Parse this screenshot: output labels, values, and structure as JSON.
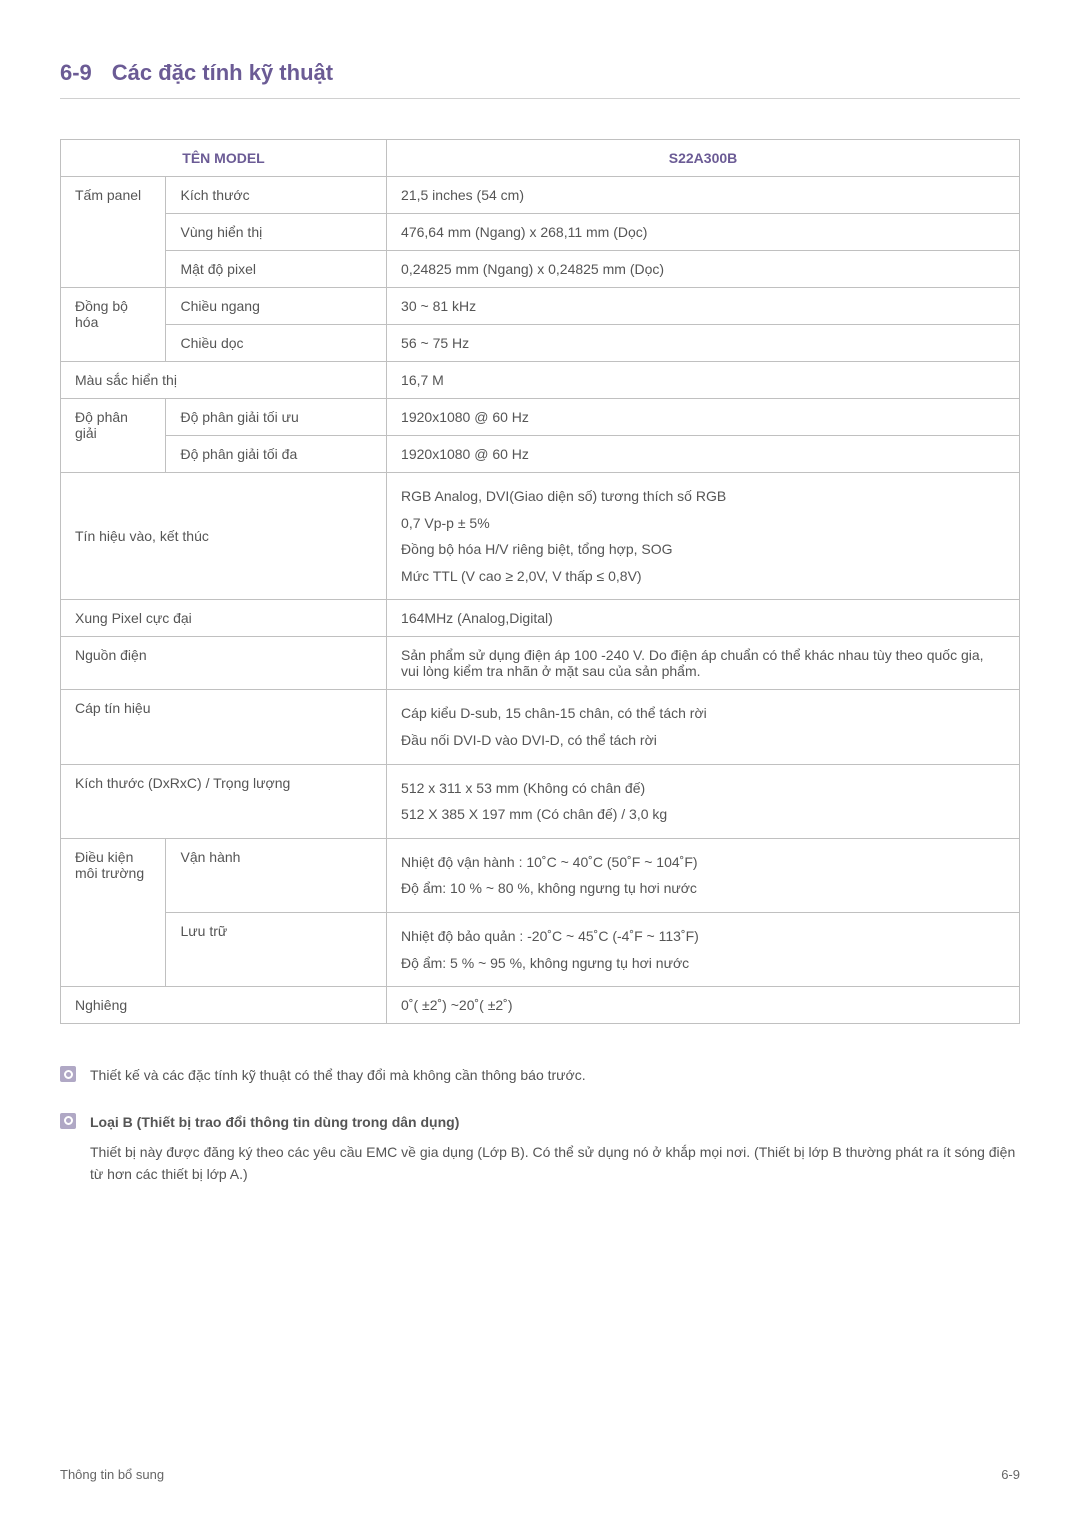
{
  "header": {
    "section_number": "6-9",
    "section_title": "Các đặc tính kỹ thuật"
  },
  "table": {
    "header_left": "TÊN MODEL",
    "header_right": "S22A300B",
    "rows": [
      {
        "group": "Tấm panel",
        "label": "Kích thước",
        "value": "21,5 inches (54 cm)"
      },
      {
        "group": null,
        "label": "Vùng hiển thị",
        "value": "476,64 mm (Ngang) x 268,11 mm (Dọc)"
      },
      {
        "group": null,
        "label": "Mật độ pixel",
        "value": "0,24825 mm (Ngang) x 0,24825 mm (Dọc)"
      },
      {
        "group": "Đồng bộ hóa",
        "label": "Chiều ngang",
        "value": "30 ~ 81 kHz"
      },
      {
        "group": null,
        "label": "Chiều dọc",
        "value": "56 ~ 75 Hz"
      },
      {
        "group_span": "Màu sắc hiển thị",
        "value": "16,7 M"
      },
      {
        "group": "Độ phân giải",
        "label": "Độ phân giải tối ưu",
        "value": "1920x1080 @ 60 Hz"
      },
      {
        "group": null,
        "label": "Độ phân giải tối đa",
        "value": "1920x1080 @ 60 Hz"
      },
      {
        "group_span": "Tín hiệu vào, kết thúc",
        "value_lines": [
          "RGB Analog, DVI(Giao diện số) tương thích số RGB",
          "0,7 Vp-p ± 5%",
          "Đồng bộ hóa H/V riêng biệt, tổng hợp, SOG",
          "Mức TTL (V cao ≥ 2,0V, V thấp ≤ 0,8V)"
        ]
      },
      {
        "group_span": "Xung Pixel cực đại",
        "value": "164MHz (Analog,Digital)"
      },
      {
        "group_span": "Nguồn điện",
        "value": "Sản phẩm sử dụng điện áp 100 -240 V. Do điện áp chuẩn có thể khác nhau tùy theo quốc gia, vui lòng kiểm tra nhãn ở mặt sau của sản phẩm."
      },
      {
        "group_span": "Cáp tín hiệu",
        "value_lines": [
          "Cáp kiểu D-sub, 15 chân-15 chân, có thể tách rời",
          "Đầu nối DVI-D vào DVI-D, có thể tách rời"
        ]
      },
      {
        "group_span": "Kích thước (DxRxC) / Trọng lượng",
        "value_lines": [
          "512 x 311 x 53 mm (Không có chân đế)",
          "512 X 385 X 197 mm (Có chân đế) / 3,0 kg"
        ]
      },
      {
        "group": "Điều kiện môi trường",
        "label": "Vận hành",
        "value_lines": [
          "Nhiệt độ vận hành : 10˚C ~ 40˚C (50˚F ~ 104˚F)",
          "Độ ẩm: 10 % ~ 80 %, không ngưng tụ hơi nước"
        ]
      },
      {
        "group": null,
        "label": "Lưu trữ",
        "value_lines": [
          "Nhiệt độ bảo quản : -20˚C ~ 45˚C (-4˚F ~ 113˚F)",
          "Độ ẩm: 5 % ~ 95 %, không ngưng tụ hơi nước"
        ]
      },
      {
        "group_span": "Nghiêng",
        "value": "0˚( ±2˚) ~20˚( ±2˚)"
      }
    ]
  },
  "notes": {
    "note1": "Thiết kế và các đặc tính kỹ thuật có thể thay đổi mà không cần thông báo trước.",
    "note2_title": "Loại B (Thiết bị trao đổi thông tin dùng trong dân dụng)",
    "note2_body": "Thiết bị này được đăng ký theo các yêu cầu EMC về gia dụng (Lớp B). Có thể sử dụng nó ở khắp mọi nơi. (Thiết bị lớp B thường phát ra ít sóng điện từ hơn các thiết bị lớp A.)"
  },
  "footer": {
    "left": "Thông tin bổ sung",
    "right": "6-9"
  }
}
